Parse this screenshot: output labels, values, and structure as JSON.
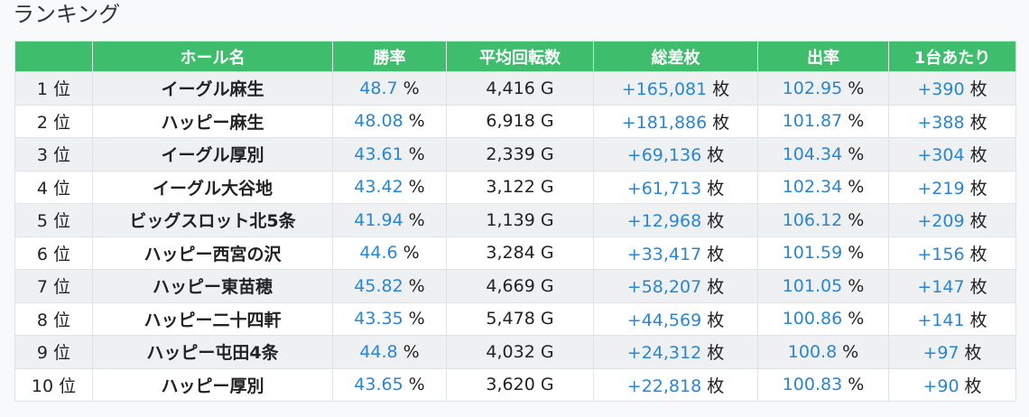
{
  "page": {
    "title": "ランキング"
  },
  "table": {
    "headers": [
      "",
      "ホール名",
      "勝率",
      "平均回転数",
      "総差枚",
      "出率",
      "1台あたり"
    ],
    "rows": [
      {
        "rank": "1 位",
        "hall": "イーグル麻生",
        "win_rate": "48.7",
        "win_rate_unit": "%",
        "avg_spins": "4,416",
        "avg_spins_unit": "G",
        "total_diff": "+165,081",
        "total_diff_unit": "枚",
        "payout": "102.95",
        "payout_unit": "%",
        "per_machine": "+390",
        "per_machine_unit": "枚"
      },
      {
        "rank": "2 位",
        "hall": "ハッピー麻生",
        "win_rate": "48.08",
        "win_rate_unit": "%",
        "avg_spins": "6,918",
        "avg_spins_unit": "G",
        "total_diff": "+181,886",
        "total_diff_unit": "枚",
        "payout": "101.87",
        "payout_unit": "%",
        "per_machine": "+388",
        "per_machine_unit": "枚"
      },
      {
        "rank": "3 位",
        "hall": "イーグル厚別",
        "win_rate": "43.61",
        "win_rate_unit": "%",
        "avg_spins": "2,339",
        "avg_spins_unit": "G",
        "total_diff": "+69,136",
        "total_diff_unit": "枚",
        "payout": "104.34",
        "payout_unit": "%",
        "per_machine": "+304",
        "per_machine_unit": "枚"
      },
      {
        "rank": "4 位",
        "hall": "イーグル大谷地",
        "win_rate": "43.42",
        "win_rate_unit": "%",
        "avg_spins": "3,122",
        "avg_spins_unit": "G",
        "total_diff": "+61,713",
        "total_diff_unit": "枚",
        "payout": "102.34",
        "payout_unit": "%",
        "per_machine": "+219",
        "per_machine_unit": "枚"
      },
      {
        "rank": "5 位",
        "hall": "ビッグスロット北5条",
        "win_rate": "41.94",
        "win_rate_unit": "%",
        "avg_spins": "1,139",
        "avg_spins_unit": "G",
        "total_diff": "+12,968",
        "total_diff_unit": "枚",
        "payout": "106.12",
        "payout_unit": "%",
        "per_machine": "+209",
        "per_machine_unit": "枚"
      },
      {
        "rank": "6 位",
        "hall": "ハッピー西宮の沢",
        "win_rate": "44.6",
        "win_rate_unit": "%",
        "avg_spins": "3,284",
        "avg_spins_unit": "G",
        "total_diff": "+33,417",
        "total_diff_unit": "枚",
        "payout": "101.59",
        "payout_unit": "%",
        "per_machine": "+156",
        "per_machine_unit": "枚"
      },
      {
        "rank": "7 位",
        "hall": "ハッピー東苗穂",
        "win_rate": "45.82",
        "win_rate_unit": "%",
        "avg_spins": "4,669",
        "avg_spins_unit": "G",
        "total_diff": "+58,207",
        "total_diff_unit": "枚",
        "payout": "101.05",
        "payout_unit": "%",
        "per_machine": "+147",
        "per_machine_unit": "枚"
      },
      {
        "rank": "8 位",
        "hall": "ハッピー二十四軒",
        "win_rate": "43.35",
        "win_rate_unit": "%",
        "avg_spins": "5,478",
        "avg_spins_unit": "G",
        "total_diff": "+44,569",
        "total_diff_unit": "枚",
        "payout": "100.86",
        "payout_unit": "%",
        "per_machine": "+141",
        "per_machine_unit": "枚"
      },
      {
        "rank": "9 位",
        "hall": "ハッピー屯田4条",
        "win_rate": "44.8",
        "win_rate_unit": "%",
        "avg_spins": "4,032",
        "avg_spins_unit": "G",
        "total_diff": "+24,312",
        "total_diff_unit": "枚",
        "payout": "100.8",
        "payout_unit": "%",
        "per_machine": "+97",
        "per_machine_unit": "枚"
      },
      {
        "rank": "10 位",
        "hall": "ハッピー厚別",
        "win_rate": "43.65",
        "win_rate_unit": "%",
        "avg_spins": "3,620",
        "avg_spins_unit": "G",
        "total_diff": "+22,818",
        "total_diff_unit": "枚",
        "payout": "100.83",
        "payout_unit": "%",
        "per_machine": "+90",
        "per_machine_unit": "枚"
      }
    ]
  },
  "colors": {
    "header_bg": "#3ebe6c",
    "value_blue": "#2a86d1",
    "row_stripe": "#eef0f2"
  }
}
